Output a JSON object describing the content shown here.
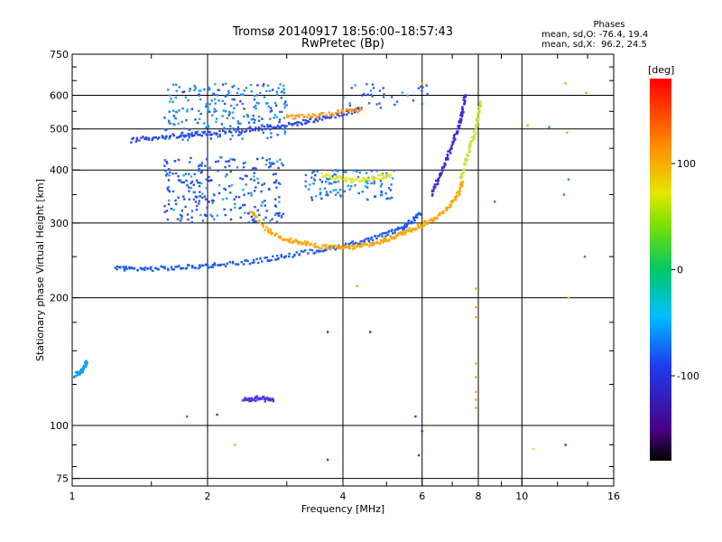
{
  "chart_data": {
    "type": "scatter",
    "title": "Tromsø 20140917 18:56:00–18:57:43",
    "subtitle": "RwPretec (Bp)",
    "xlabel": "Frequency [MHz]",
    "ylabel": "Stationary phase Virtual Height [km]",
    "x_scale": "log",
    "y_scale": "log",
    "xlim": [
      1,
      16
    ],
    "ylim": [
      72,
      750
    ],
    "x_ticks": [
      1,
      2,
      4,
      6,
      8,
      10,
      16
    ],
    "x_tick_labels": [
      "1",
      "2",
      "4",
      "6",
      "8",
      "10",
      "16"
    ],
    "y_ticks": [
      75,
      100,
      200,
      300,
      400,
      500,
      600,
      750
    ],
    "y_tick_labels": [
      "75",
      "100",
      "200",
      "300",
      "400",
      "500",
      "600",
      "750"
    ],
    "grid": true,
    "colorbar": {
      "label": "[deg]",
      "range": [
        -180,
        180
      ],
      "ticks": [
        100,
        0,
        -100
      ],
      "tick_labels": [
        "100",
        "0",
        "-100"
      ]
    },
    "phase_stats": {
      "header": "Phases",
      "o_line": "mean, sd,O: -76.4, 19.4",
      "x_line": "mean, sd,X:  96.2, 24.5"
    },
    "traces": [
      {
        "name": "o-low-F",
        "color": "#1e5cf0",
        "x": [
          1.25,
          1.35,
          1.5,
          1.7,
          1.9,
          2.1,
          2.4,
          2.7,
          3.0,
          3.4,
          3.8,
          4.2,
          4.6,
          5.0,
          5.4,
          5.7,
          5.95
        ],
        "y": [
          236,
          234,
          234,
          235,
          237,
          239,
          242,
          246,
          251,
          257,
          262,
          268,
          274,
          282,
          292,
          303,
          315
        ]
      },
      {
        "name": "x-low-F",
        "color": "#ffa500",
        "x": [
          2.5,
          2.7,
          2.9,
          3.1,
          3.3,
          3.6,
          3.9,
          4.2,
          4.5,
          4.8,
          5.1,
          5.4,
          5.7,
          6.0,
          6.3,
          6.6,
          6.9,
          7.2,
          7.4
        ],
        "y": [
          320,
          290,
          278,
          272,
          268,
          264,
          262,
          263,
          266,
          270,
          276,
          283,
          290,
          297,
          305,
          315,
          330,
          350,
          375
        ]
      },
      {
        "name": "o-high-F",
        "color": "#2d44e6",
        "x": [
          1.35,
          1.5,
          1.7,
          1.9,
          2.1,
          2.4,
          2.7,
          3.0,
          3.3,
          3.6,
          4.0,
          4.4
        ],
        "y": [
          470,
          476,
          482,
          486,
          490,
          496,
          503,
          510,
          520,
          530,
          542,
          560
        ]
      },
      {
        "name": "o-vertical-7",
        "color": "#3b2cd4",
        "x": [
          6.3,
          6.5,
          6.7,
          6.9,
          7.1,
          7.3,
          7.4,
          7.5
        ],
        "y": [
          350,
          380,
          410,
          440,
          480,
          520,
          560,
          600
        ]
      },
      {
        "name": "x-vertical-8",
        "color": "#c8e13a",
        "x": [
          7.3,
          7.5,
          7.7,
          7.9,
          8.0,
          8.1
        ],
        "y": [
          380,
          420,
          460,
          500,
          540,
          580
        ]
      },
      {
        "name": "o-E",
        "color": "#4a3ae0",
        "x": [
          2.4,
          2.5,
          2.6,
          2.7,
          2.8
        ],
        "y": [
          115,
          115,
          116,
          115,
          115
        ]
      },
      {
        "name": "o-low-freq",
        "color": "#1a9cf0",
        "x": [
          1.02,
          1.04,
          1.06,
          1.08
        ],
        "y": [
          132,
          133,
          136,
          141
        ]
      },
      {
        "name": "x-upper-echo",
        "color": "#ff9a1f",
        "x": [
          3.0,
          3.3,
          3.6,
          4.0,
          4.4
        ],
        "y": [
          535,
          533,
          540,
          548,
          555
        ]
      },
      {
        "name": "x-mid-echo",
        "color": "#e0e82a",
        "x": [
          3.6,
          3.9,
          4.2,
          4.5,
          4.8,
          5.1
        ],
        "y": [
          390,
          382,
          378,
          380,
          384,
          390
        ]
      }
    ],
    "clusters": [
      {
        "name": "o-block-upper",
        "color": "#2a8cf0",
        "x_range": [
          1.6,
          3.0
        ],
        "y_range": [
          470,
          640
        ],
        "count": 240
      },
      {
        "name": "o-block-middle",
        "color": "#2b50e8",
        "x_range": [
          1.6,
          2.95
        ],
        "y_range": [
          300,
          430
        ],
        "count": 260
      },
      {
        "name": "o-block-mid-right",
        "color": "#2a7cf0",
        "x_range": [
          3.3,
          5.2
        ],
        "y_range": [
          340,
          400
        ],
        "count": 110
      },
      {
        "name": "o-upper-right",
        "color": "#3060e8",
        "x_range": [
          4.0,
          6.2
        ],
        "y_range": [
          560,
          640
        ],
        "count": 35
      }
    ],
    "scatter_points": [
      {
        "color": "#ffa500",
        "x": [
          7.9,
          7.9,
          7.9,
          7.9,
          7.9,
          7.9,
          7.9,
          7.9
        ],
        "y": [
          110,
          115,
          120,
          130,
          140,
          180,
          190,
          210
        ]
      },
      {
        "color": "#ffa500",
        "x": [
          6.0,
          10.3,
          12.5,
          12.6,
          13.9,
          2.3,
          4.3
        ],
        "y": [
          640,
          510,
          640,
          490,
          608,
          90,
          213
        ]
      },
      {
        "color": "#1e44e0",
        "x": [
          5.9,
          3.7,
          4.6,
          5.8,
          12.5,
          3.7,
          6.0,
          2.1
        ],
        "y": [
          85,
          166,
          166,
          105,
          90,
          83,
          97,
          106
        ]
      },
      {
        "color": "#1e80f0",
        "x": [
          1.01,
          1.8,
          12.7,
          13.8,
          11.5,
          12.4,
          8.7
        ],
        "y": [
          130,
          105,
          380,
          250,
          505,
          350,
          337
        ]
      },
      {
        "color": "#c8e13a",
        "x": [
          10.6,
          12.7
        ],
        "y": [
          88,
          200
        ]
      }
    ]
  }
}
